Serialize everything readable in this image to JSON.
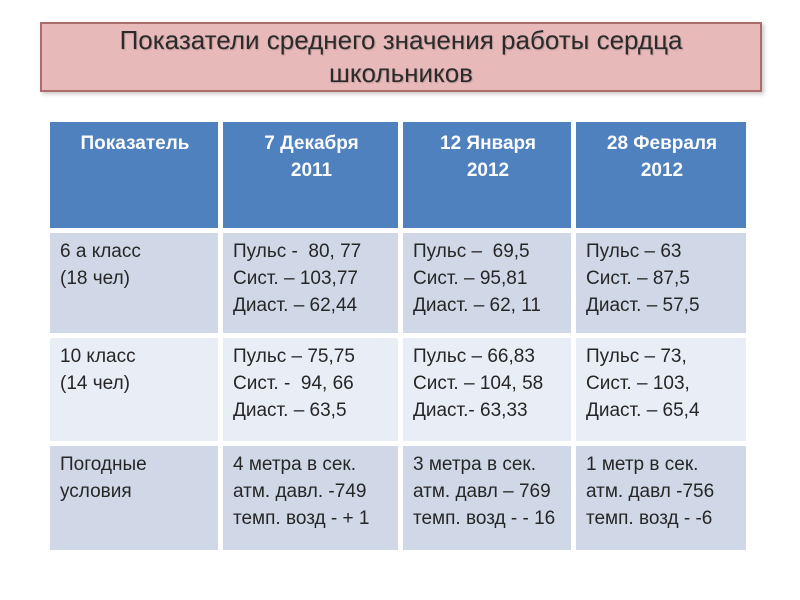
{
  "title_lines": [
    "Показатели среднего значения работы сердца",
    "школьников"
  ],
  "colors": {
    "title_fill": "#e7b9b8",
    "title_border": "#ab6d6b",
    "header_bg": "#4e81bd",
    "band_dark": "#d0d8e8",
    "band_light": "#e9edf5"
  },
  "table": {
    "headers": [
      [
        "Показатель"
      ],
      [
        "7 Декабря",
        "2011"
      ],
      [
        "12 Января",
        "2012"
      ],
      [
        "28 Февраля",
        "2012"
      ]
    ],
    "rows": [
      {
        "label": [
          "6 а класс",
          "(18 чел)"
        ],
        "cells": [
          [
            "Пульс -  80, 77",
            "Сист. – 103,77",
            "Диаст. – 62,44"
          ],
          [
            "Пульс –  69,5",
            "Сист. – 95,81",
            "Диаст. – 62, 11"
          ],
          [
            "Пульс – 63",
            "Сист. – 87,5",
            "Диаст. – 57,5"
          ]
        ]
      },
      {
        "label": [
          "10 класс",
          "(14 чел)"
        ],
        "cells": [
          [
            "Пульс – 75,75",
            "Сист. -  94, 66",
            "Диаст. – 63,5"
          ],
          [
            "Пульс – 66,83",
            "Сист. – 104, 58",
            "Диаст.- 63,33"
          ],
          [
            "Пульс – 73,",
            "Сист. – 103,",
            "Диаст. – 65,4"
          ]
        ]
      },
      {
        "label": [
          "Погодные",
          "условия"
        ],
        "cells": [
          [
            "4 метра в сек.",
            "атм. давл. -749",
            "темп. возд - + 1"
          ],
          [
            "3 метра в сек.",
            "атм. давл – 769",
            "темп. возд - - 16"
          ],
          [
            "1 метр в сек.",
            "атм. давл -756",
            "темп. возд - -6"
          ]
        ]
      }
    ]
  }
}
